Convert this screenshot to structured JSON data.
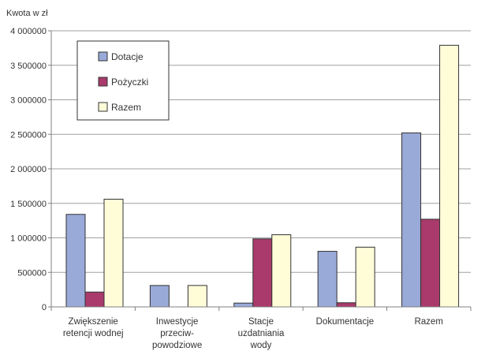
{
  "chart_data": {
    "type": "bar",
    "ylabel": "Kwota w zł",
    "categories": [
      [
        "Zwiększenie",
        "retencji  wodnej"
      ],
      [
        "Inwestycje",
        "przeciw-",
        "powodziowe"
      ],
      [
        "Stacje",
        "uzdatniania",
        "wody"
      ],
      [
        "Dokumentacje"
      ],
      [
        "Razem"
      ]
    ],
    "series": [
      {
        "name": "Dotacje",
        "color": "#99a9d8",
        "values": [
          1340000,
          310000,
          55000,
          805000,
          2520000
        ]
      },
      {
        "name": "Pożyczki",
        "color": "#a93a6b",
        "values": [
          215000,
          0,
          985000,
          60000,
          1270000
        ]
      },
      {
        "name": "Razem",
        "color": "#fffcd8",
        "values": [
          1560000,
          310000,
          1045000,
          865000,
          3790000
        ]
      }
    ],
    "ylim": [
      0,
      4000000
    ],
    "yticks": [
      {
        "value": 0,
        "label": "0"
      },
      {
        "value": 500000,
        "label": "500000"
      },
      {
        "value": 1000000,
        "label": "1 000000"
      },
      {
        "value": 1500000,
        "label": "1 500000"
      },
      {
        "value": 2000000,
        "label": "2 000000"
      },
      {
        "value": 2500000,
        "label": "2 500000"
      },
      {
        "value": 3000000,
        "label": "3 000000"
      },
      {
        "value": 3500000,
        "label": "3 500000"
      },
      {
        "value": 4000000,
        "label": "4 000000"
      }
    ],
    "grid": true,
    "legend_position": "top-left"
  }
}
